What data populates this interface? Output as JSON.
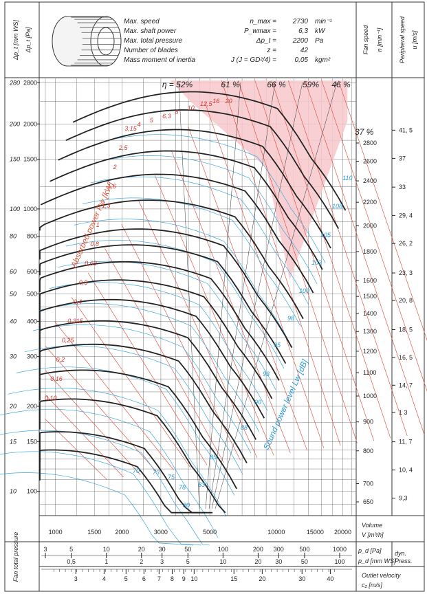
{
  "header": {
    "left_label_mm": "Δp_t [mm WS]",
    "left_label_pa": "Δp_t [Pa]",
    "specs": [
      {
        "label": "Max. speed",
        "symbol": "n_max =",
        "value": "2730",
        "unit": "min⁻¹"
      },
      {
        "label": "Max. shaft power",
        "symbol": "P_wmax =",
        "value": "6,3",
        "unit": "kW"
      },
      {
        "label": "Max. total pressure",
        "symbol": "Δp_t =",
        "value": "2200",
        "unit": "Pa"
      },
      {
        "label": "Number of blades",
        "symbol": "z =",
        "value": "42",
        "unit": ""
      },
      {
        "label": "Mass moment of inertia",
        "symbol": "J (J = GD²/4) =",
        "value": "0,05",
        "unit": "kgm²"
      }
    ],
    "fan_speed_label": "Fan speed",
    "fan_speed_unit": "n [min⁻¹]",
    "peripheral_label": "Peripheral speed",
    "peripheral_unit": "u [m/s]"
  },
  "chart_data": {
    "type": "line",
    "xscale": "log",
    "yscale": "log",
    "xlim": [
      850,
      23000
    ],
    "ylim": [
      82,
      2900
    ],
    "x_ticks": [
      1000,
      1500,
      2000,
      3000,
      5000,
      10000,
      15000,
      20000
    ],
    "x_tick_labels": [
      "1000",
      "1500",
      "2000",
      "3000",
      "5000",
      "10000",
      "15000",
      "20000"
    ],
    "x_axis_label": "Volume",
    "x_axis_unit": "V [m³/h]",
    "y_ticks_pa": [
      100,
      150,
      200,
      300,
      400,
      500,
      600,
      800,
      1000,
      1500,
      2000,
      2800
    ],
    "y_ticks_mm": [
      10,
      15,
      20,
      30,
      40,
      50,
      60,
      80,
      100,
      150,
      200,
      280
    ],
    "efficiency_labels": [
      "η = 52%",
      "61 %",
      "66 %",
      "59%",
      "46 %",
      "37 %"
    ],
    "speed_ticks": [
      650,
      700,
      800,
      900,
      1000,
      1100,
      1200,
      1300,
      1400,
      1500,
      1600,
      1800,
      2000,
      2200,
      2400,
      2600,
      2800
    ],
    "peripheral_ticks": [
      {
        "speed": 660,
        "u": "9,3"
      },
      {
        "speed": 740,
        "u": "10, 4"
      },
      {
        "speed": 830,
        "u": "11, 7"
      },
      {
        "speed": 935,
        "u": "1 3"
      },
      {
        "speed": 1045,
        "u": "14, 7"
      },
      {
        "speed": 1170,
        "u": "16, 5"
      },
      {
        "speed": 1310,
        "u": "18, 5"
      },
      {
        "speed": 1475,
        "u": "20, 8"
      },
      {
        "speed": 1650,
        "u": "23, 3"
      },
      {
        "speed": 1860,
        "u": "26, 2"
      },
      {
        "speed": 2085,
        "u": "29, 4"
      },
      {
        "speed": 2340,
        "u": "33"
      },
      {
        "speed": 2630,
        "u": "37"
      },
      {
        "speed": 2950,
        "u": "41, 5"
      }
    ],
    "power_labels": [
      "0,10",
      "0,16",
      "0,2",
      "0,25",
      "0,315",
      "0,4",
      "0,5",
      "0,63",
      "0,8",
      "1",
      "1,3",
      "1,6",
      "2",
      "2,5",
      "3,15",
      "4",
      "5",
      "6,3",
      "8",
      "10",
      "12,5",
      "16",
      "20"
    ],
    "power_axis_label": "Absorbed power Pw [kW]",
    "sound_labels": [
      "70",
      "73",
      "75",
      "78",
      "80",
      "83",
      "85",
      "88",
      "90",
      "93",
      "95",
      "98",
      "100",
      "103",
      "105",
      "108",
      "110"
    ],
    "sound_axis_label": "Sound power level Lw [dB]"
  },
  "bottom": {
    "fan_total_pressure_label": "Fan total pressure",
    "dyn_ticks": [
      "3",
      "5",
      "10",
      "20",
      "30",
      "50",
      "100",
      "200",
      "300",
      "500",
      "1000"
    ],
    "dyn_small_ticks": [
      "0,5",
      "1",
      "2",
      "3",
      "5",
      "10",
      "20",
      "30",
      "50",
      "100"
    ],
    "dyn_label_pa": "p_d [Pa]",
    "dyn_label_mm": "p_d [mm WS]",
    "dyn_press": "dyn. Press.",
    "vel_ticks": [
      "3",
      "4",
      "5",
      "6",
      "7",
      "8",
      "9",
      "10",
      "15",
      "20",
      "30",
      "40"
    ],
    "outlet_label": "Outlet velocity",
    "outlet_unit": "c₂ [m/s]"
  }
}
